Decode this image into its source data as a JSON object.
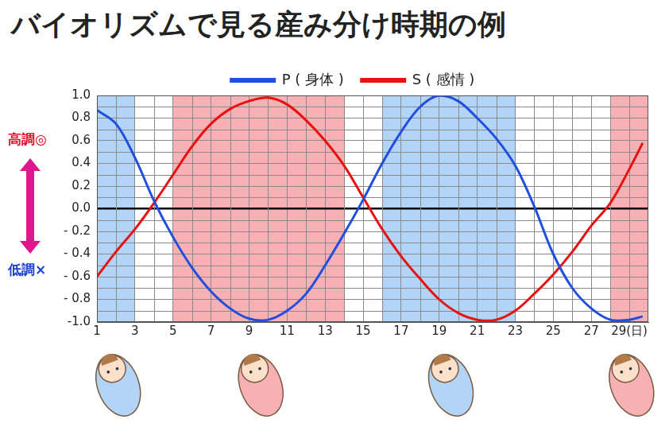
{
  "chart_data": {
    "type": "line",
    "title": "バイオリズムで見る産み分け時期の例",
    "x": [
      1,
      2,
      3,
      4,
      5,
      6,
      7,
      8,
      9,
      10,
      11,
      12,
      13,
      14,
      15,
      16,
      17,
      18,
      19,
      20,
      21,
      22,
      23,
      24,
      25,
      26,
      27,
      28,
      29,
      29.7
    ],
    "series": [
      {
        "name": "P ( 身体 )",
        "color": "#1f4fe0",
        "values": [
          0.87,
          0.75,
          0.45,
          0.07,
          -0.25,
          -0.52,
          -0.73,
          -0.88,
          -0.97,
          -0.98,
          -0.9,
          -0.75,
          -0.5,
          -0.22,
          0.08,
          0.4,
          0.68,
          0.9,
          1.0,
          0.95,
          0.8,
          0.62,
          0.38,
          0.02,
          -0.4,
          -0.7,
          -0.88,
          -0.98,
          -0.98,
          -0.95
        ]
      },
      {
        "name": "S ( 感情 )",
        "color": "#e81010",
        "values": [
          -0.6,
          -0.38,
          -0.18,
          0.05,
          0.3,
          0.55,
          0.75,
          0.88,
          0.95,
          0.98,
          0.92,
          0.78,
          0.6,
          0.38,
          0.1,
          -0.18,
          -0.42,
          -0.62,
          -0.8,
          -0.92,
          -0.98,
          -0.98,
          -0.9,
          -0.75,
          -0.58,
          -0.38,
          -0.15,
          0.05,
          0.35,
          0.58
        ]
      }
    ],
    "xlim": [
      1,
      30
    ],
    "xticks": [
      1,
      3,
      5,
      7,
      9,
      11,
      13,
      15,
      17,
      19,
      21,
      23,
      25,
      27,
      {
        "value": 29,
        "label": "29(日)"
      }
    ],
    "ylim": [
      -1,
      1
    ],
    "yticks": [
      {
        "value": 1,
        "label": "1.0"
      },
      {
        "value": 0.8,
        "label": "0.8"
      },
      {
        "value": 0.6,
        "label": "0.6"
      },
      {
        "value": 0.4,
        "label": "0.4"
      },
      {
        "value": 0.2,
        "label": "0.2"
      },
      {
        "value": 0,
        "label": "0.0"
      },
      {
        "value": -0.2,
        "label": "- 0.2"
      },
      {
        "value": -0.4,
        "label": "- 0.4"
      },
      {
        "value": -0.6,
        "label": "- 0.6"
      },
      {
        "value": -0.8,
        "label": "- 0.8"
      },
      {
        "value": -1,
        "label": "-1.0"
      }
    ],
    "grid": true,
    "legend": "top",
    "shaded_ranges": [
      {
        "x": [
          1,
          3
        ],
        "color": "#b2d4f6"
      },
      {
        "x": [
          5,
          14
        ],
        "color": "#f7b0b3"
      },
      {
        "x": [
          16,
          23
        ],
        "color": "#b2d4f6"
      },
      {
        "x": [
          28,
          30
        ],
        "color": "#f7b0b3"
      }
    ],
    "annotations": [
      {
        "text": "高調◎",
        "y": 0.6,
        "color": "#e0102a"
      },
      {
        "text": "低調×",
        "y": -0.55,
        "color": "#1a3fd0"
      }
    ]
  }
}
